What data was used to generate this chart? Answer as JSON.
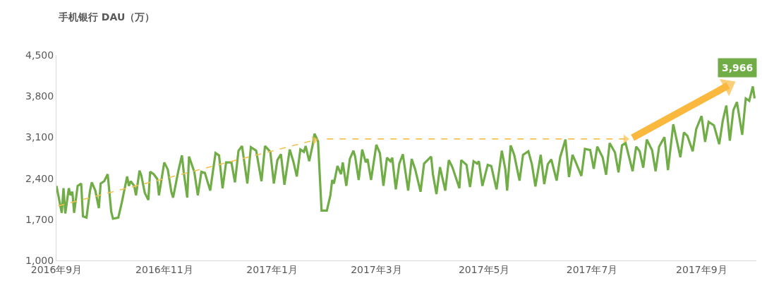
{
  "chart_data": {
    "type": "line",
    "title": "手机银行 DAU（万）",
    "ylim": [
      1000,
      4500
    ],
    "yticks": [
      {
        "value": 1000,
        "label": "1,000"
      },
      {
        "value": 1700,
        "label": "1,700"
      },
      {
        "value": 2400,
        "label": "2,400"
      },
      {
        "value": 3100,
        "label": "3,100"
      },
      {
        "value": 3800,
        "label": "3,800"
      },
      {
        "value": 4500,
        "label": "4,500"
      }
    ],
    "xlim": [
      "2016-09-01",
      "2017-10-02"
    ],
    "xticks": [
      {
        "value": "2016-09-01",
        "label": "2016年9月"
      },
      {
        "value": "2016-11-01",
        "label": "2016年11月"
      },
      {
        "value": "2017-01-01",
        "label": "2017年1月"
      },
      {
        "value": "2017-03-01",
        "label": "2017年3月"
      },
      {
        "value": "2017-05-01",
        "label": "2017年5月"
      },
      {
        "value": "2017-07-01",
        "label": "2017年7月"
      },
      {
        "value": "2017-09-01",
        "label": "2017年9月"
      }
    ],
    "grid": false,
    "annotations": [
      {
        "text": "3,966",
        "x": "2017-09-30",
        "y": 3966
      }
    ],
    "series": [
      {
        "color": "#70ad47",
        "line_style": "solid",
        "x": [
          "2016-09-01",
          "2016-09-04",
          "2016-09-05",
          "2016-09-06",
          "2016-09-08",
          "2016-09-09",
          "2016-09-10",
          "2016-09-11",
          "2016-09-13",
          "2016-09-15",
          "2016-09-16",
          "2016-09-18",
          "2016-09-20",
          "2016-09-21",
          "2016-09-23",
          "2016-09-25",
          "2016-09-26",
          "2016-09-28",
          "2016-09-30",
          "2016-10-02",
          "2016-10-03",
          "2016-10-06",
          "2016-10-08",
          "2016-10-11",
          "2016-10-12",
          "2016-10-13",
          "2016-10-15",
          "2016-10-16",
          "2016-10-18",
          "2016-10-19",
          "2016-10-21",
          "2016-10-23",
          "2016-10-24",
          "2016-10-26",
          "2016-10-28",
          "2016-10-29",
          "2016-11-01",
          "2016-11-03",
          "2016-11-05",
          "2016-11-06",
          "2016-11-09",
          "2016-11-11",
          "2016-11-12",
          "2016-11-14",
          "2016-11-15",
          "2016-11-18",
          "2016-11-20",
          "2016-11-22",
          "2016-11-24",
          "2016-11-27",
          "2016-11-30",
          "2016-12-02",
          "2016-12-04",
          "2016-12-06",
          "2016-12-09",
          "2016-12-11",
          "2016-12-13",
          "2016-12-15",
          "2016-12-18",
          "2016-12-20",
          "2016-12-23",
          "2016-12-26",
          "2016-12-28",
          "2016-12-31",
          "2017-01-02",
          "2017-01-04",
          "2017-01-06",
          "2017-01-08",
          "2017-01-11",
          "2017-01-13",
          "2017-01-15",
          "2017-01-17",
          "2017-01-19",
          "2017-01-20",
          "2017-01-22",
          "2017-01-24",
          "2017-01-25",
          "2017-01-27",
          "2017-01-29",
          "2017-02-01",
          "2017-02-03",
          "2017-02-04",
          "2017-02-05",
          "2017-02-07",
          "2017-02-09",
          "2017-02-10",
          "2017-02-12",
          "2017-02-14",
          "2017-02-16",
          "2017-02-17",
          "2017-02-19",
          "2017-02-21",
          "2017-02-23",
          "2017-02-24",
          "2017-02-26",
          "2017-03-01",
          "2017-03-03",
          "2017-03-05",
          "2017-03-07",
          "2017-03-09",
          "2017-03-10",
          "2017-03-12",
          "2017-03-14",
          "2017-03-16",
          "2017-03-19",
          "2017-03-21",
          "2017-03-23",
          "2017-03-26",
          "2017-03-28",
          "2017-04-01",
          "2017-04-02",
          "2017-04-04",
          "2017-04-06",
          "2017-04-09",
          "2017-04-11",
          "2017-04-13",
          "2017-04-17",
          "2017-04-18",
          "2017-04-21",
          "2017-04-23",
          "2017-04-25",
          "2017-04-27",
          "2017-04-28",
          "2017-04-30",
          "2017-05-03",
          "2017-05-05",
          "2017-05-08",
          "2017-05-11",
          "2017-05-13",
          "2017-05-14",
          "2017-05-16",
          "2017-05-18",
          "2017-05-21",
          "2017-05-23",
          "2017-05-26",
          "2017-05-28",
          "2017-05-30",
          "2017-06-02",
          "2017-06-04",
          "2017-06-06",
          "2017-06-08",
          "2017-06-11",
          "2017-06-13",
          "2017-06-16",
          "2017-06-18",
          "2017-06-20",
          "2017-06-22",
          "2017-06-25",
          "2017-06-27",
          "2017-06-30",
          "2017-07-02",
          "2017-07-04",
          "2017-07-07",
          "2017-07-09",
          "2017-07-11",
          "2017-07-14",
          "2017-07-16",
          "2017-07-18",
          "2017-07-20",
          "2017-07-24",
          "2017-07-26",
          "2017-07-28",
          "2017-07-30",
          "2017-08-01",
          "2017-08-04",
          "2017-08-06",
          "2017-08-08",
          "2017-08-11",
          "2017-08-13",
          "2017-08-16",
          "2017-08-18",
          "2017-08-20",
          "2017-08-22",
          "2017-08-24",
          "2017-08-27",
          "2017-08-29",
          "2017-09-01",
          "2017-09-03",
          "2017-09-05",
          "2017-09-08",
          "2017-09-11",
          "2017-09-13",
          "2017-09-15",
          "2017-09-17",
          "2017-09-19",
          "2017-09-21",
          "2017-09-24",
          "2017-09-26",
          "2017-09-28",
          "2017-09-30",
          "2017-10-01"
        ],
        "values": [
          2270,
          1810,
          2230,
          1800,
          2230,
          2110,
          2170,
          1810,
          2270,
          2310,
          1750,
          1730,
          2190,
          2330,
          2190,
          1890,
          2310,
          2350,
          2470,
          1830,
          1710,
          1730,
          1990,
          2430,
          2270,
          2350,
          2270,
          2110,
          2530,
          2450,
          2150,
          2030,
          2510,
          2470,
          2390,
          2110,
          2670,
          2550,
          2170,
          2070,
          2530,
          2790,
          2510,
          2070,
          2770,
          2510,
          2110,
          2510,
          2490,
          2190,
          2830,
          2790,
          2230,
          2670,
          2670,
          2330,
          2870,
          2950,
          2310,
          2930,
          2870,
          2350,
          2950,
          2850,
          2310,
          2710,
          2810,
          2290,
          2890,
          2690,
          2430,
          2890,
          2850,
          2950,
          2690,
          2970,
          3160,
          3030,
          1850,
          1850,
          2110,
          2370,
          2310,
          2610,
          2470,
          2670,
          2270,
          2730,
          2870,
          2770,
          2370,
          2890,
          2670,
          2730,
          2370,
          2970,
          2830,
          2270,
          2750,
          2690,
          2750,
          2210,
          2650,
          2810,
          2190,
          2730,
          2550,
          2170,
          2650,
          2770,
          2470,
          2130,
          2590,
          2190,
          2710,
          2590,
          2230,
          2710,
          2630,
          2250,
          2690,
          2650,
          2690,
          2270,
          2630,
          2610,
          2210,
          2870,
          2550,
          2190,
          2960,
          2800,
          2360,
          2800,
          2860,
          2640,
          2260,
          2800,
          2300,
          2640,
          2720,
          2360,
          2760,
          3060,
          2420,
          2800,
          2660,
          2440,
          2900,
          2880,
          2560,
          2940,
          2760,
          2460,
          3000,
          2840,
          2500,
          2960,
          3000,
          2520,
          2940,
          2860,
          2580,
          3060,
          2880,
          2520,
          2940,
          3100,
          2540,
          3320,
          3040,
          2760,
          3180,
          3120,
          2860,
          3240,
          3460,
          3020,
          3360,
          3300,
          2980,
          3380,
          3640,
          3040,
          3560,
          3700,
          3140,
          3760,
          3720,
          3966,
          3760
        ]
      },
      {
        "color": "#f5c14e",
        "line_style": "dashed",
        "marker": "triangle",
        "x": [
          "2016-09-02",
          "2017-01-25"
        ],
        "values": [
          1930,
          3050
        ]
      },
      {
        "color": "#f5c14e",
        "line_style": "dashed",
        "marker": "triangle",
        "x": [
          "2017-02-01",
          "2017-07-20"
        ],
        "values": [
          3070,
          3070
        ]
      },
      {
        "color": "#fab93e",
        "line_style": "solid",
        "marker": "triangle",
        "x": [
          "2017-07-24",
          "2017-09-16"
        ],
        "values": [
          3090,
          3980
        ]
      }
    ]
  }
}
